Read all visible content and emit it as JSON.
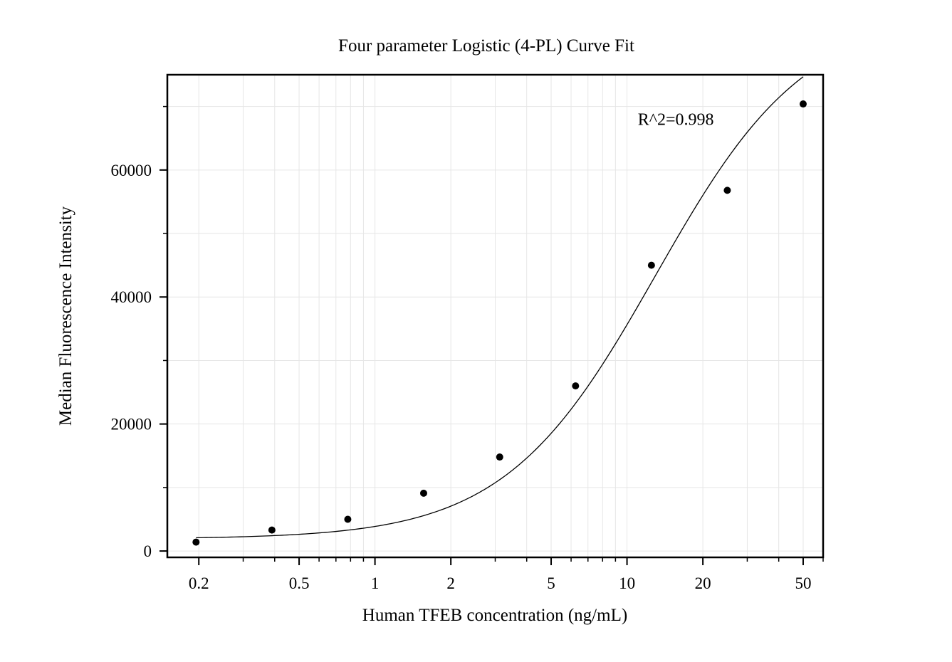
{
  "chart_data": {
    "type": "scatter",
    "title": "Four parameter Logistic (4-PL) Curve Fit",
    "xlabel": "Human TFEB concentration (ng/mL)",
    "ylabel": "Median Fluorescence Intensity",
    "x_scale": "log",
    "xlim": [
      0.15,
      60
    ],
    "ylim": [
      -1000,
      75000
    ],
    "x_ticks": [
      0.2,
      0.5,
      1,
      2,
      5,
      10,
      20,
      50
    ],
    "x_tick_labels": [
      "0.2",
      "0.5",
      "1",
      "2",
      "5",
      "10",
      "20",
      "50"
    ],
    "y_ticks": [
      0,
      20000,
      40000,
      60000
    ],
    "y_tick_labels": [
      "0",
      "20000",
      "40000",
      "60000"
    ],
    "grid": true,
    "series": [
      {
        "type": "scatter",
        "x": [
          0.195,
          0.39,
          0.78,
          1.56,
          3.125,
          6.25,
          12.5,
          25,
          50
        ],
        "y": [
          1400,
          3300,
          5000,
          9100,
          14800,
          26000,
          45000,
          56800,
          70400
        ],
        "color": "#000000"
      },
      {
        "type": "line",
        "fit": "4PL",
        "params": {
          "a": 1900,
          "b": 1.45,
          "c": 13,
          "d": 85000
        },
        "color": "#000000"
      }
    ],
    "annotations": [
      {
        "text": "R^2=0.998",
        "x": 20,
        "y": 68000
      }
    ]
  }
}
